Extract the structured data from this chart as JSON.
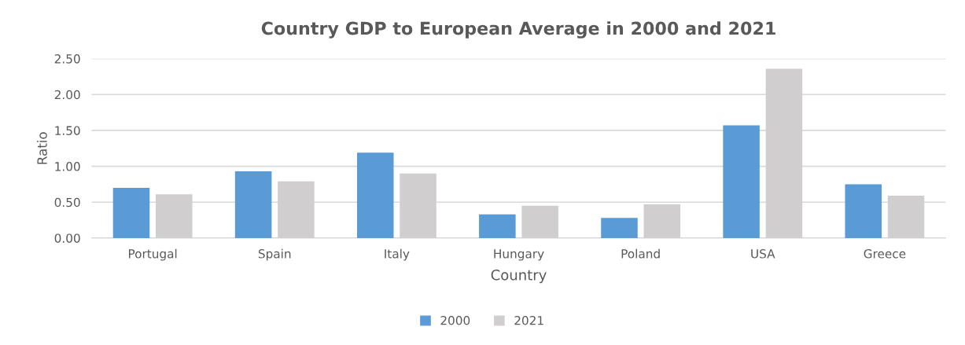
{
  "chart_data": {
    "type": "bar",
    "title": "Country GDP to European Average in 2000 and 2021",
    "xlabel": "Country",
    "ylabel": "Ratio",
    "categories": [
      "Portugal",
      "Spain",
      "Italy",
      "Hungary",
      "Poland",
      "USA",
      "Greece"
    ],
    "series": [
      {
        "name": "2000",
        "color": "#5b9bd5",
        "values": [
          0.7,
          0.93,
          1.19,
          0.33,
          0.28,
          1.57,
          0.75
        ]
      },
      {
        "name": "2021",
        "color": "#d0cece",
        "values": [
          0.61,
          0.79,
          0.9,
          0.45,
          0.47,
          2.36,
          0.59
        ]
      }
    ],
    "ylim": [
      0,
      2.5
    ],
    "yticks": [
      {
        "value": 0,
        "label": "0.00"
      },
      {
        "value": 0.5,
        "label": "0.50"
      },
      {
        "value": 1,
        "label": "1.00"
      },
      {
        "value": 1.5,
        "label": "1.50"
      },
      {
        "value": 2,
        "label": "2.00"
      },
      {
        "value": 2.5,
        "label": "2.50"
      }
    ],
    "grid": "y",
    "legend": "bottom"
  }
}
